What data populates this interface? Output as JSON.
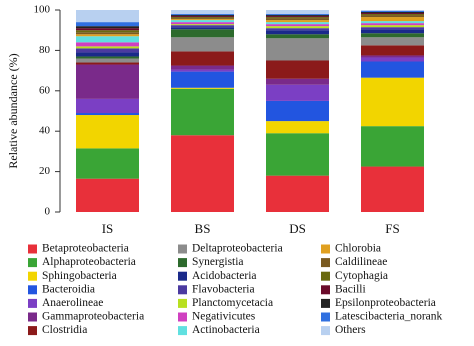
{
  "chart_data": {
    "type": "stacked_bar",
    "y_label": "Relative abundance (%)",
    "categories": [
      "IS",
      "BS",
      "DS",
      "FS"
    ],
    "ylim": [
      0,
      100
    ],
    "yticks": [
      0,
      20,
      40,
      60,
      80,
      100
    ],
    "series": [
      {
        "name": "Betaproteobacteria",
        "color": "#e8303a",
        "values": [
          16.5,
          38,
          18,
          22.5
        ]
      },
      {
        "name": "Alphaproteobacteria",
        "color": "#3aa536",
        "values": [
          15,
          23,
          21,
          20
        ]
      },
      {
        "name": "Sphingobacteria",
        "color": "#f2d500",
        "values": [
          16.5,
          0.5,
          6,
          24
        ]
      },
      {
        "name": "Bacteroidia",
        "color": "#2255e0",
        "values": [
          1,
          8,
          10,
          8
        ]
      },
      {
        "name": "Anaerolineae",
        "color": "#7b3fc4",
        "values": [
          7,
          1,
          8,
          2
        ]
      },
      {
        "name": "Gammaproteobacteria",
        "color": "#7a2a8a",
        "values": [
          17,
          2,
          3,
          1
        ]
      },
      {
        "name": "Clostridia",
        "color": "#8b1a1a",
        "values": [
          1,
          7,
          9,
          5
        ]
      },
      {
        "name": "Deltaproteobacteria",
        "color": "#8c8c8c",
        "values": [
          2,
          7,
          11,
          4
        ]
      },
      {
        "name": "Synergistia",
        "color": "#2d6a2d",
        "values": [
          1,
          4,
          2,
          2
        ]
      },
      {
        "name": "Acidobacteria",
        "color": "#1a2a8a",
        "values": [
          2,
          1,
          2,
          2
        ]
      },
      {
        "name": "Flavobacteria",
        "color": "#4b3aa0",
        "values": [
          2,
          1,
          1,
          1
        ]
      },
      {
        "name": "Planctomycetacia",
        "color": "#b8e020",
        "values": [
          1,
          0.5,
          1,
          1
        ]
      },
      {
        "name": "Negativicutes",
        "color": "#d040c0",
        "values": [
          2,
          1,
          1,
          1
        ]
      },
      {
        "name": "Actinobacteria",
        "color": "#60e0e0",
        "values": [
          3,
          1,
          1,
          1
        ]
      },
      {
        "name": "Chlorobia",
        "color": "#e0a020",
        "values": [
          1,
          0.5,
          1,
          2
        ]
      },
      {
        "name": "Caldilineae",
        "color": "#7a5a20",
        "values": [
          1,
          0.5,
          1,
          1
        ]
      },
      {
        "name": "Cytophagia",
        "color": "#6a6a10",
        "values": [
          1,
          0.5,
          0.5,
          0.5
        ]
      },
      {
        "name": "Bacilli",
        "color": "#6a0a2a",
        "values": [
          1,
          0.5,
          0.5,
          0.5
        ]
      },
      {
        "name": "Epsilonproteobacteria",
        "color": "#222222",
        "values": [
          1,
          0.5,
          0.5,
          0.5
        ]
      },
      {
        "name": "Latescibacteria_norank",
        "color": "#3070e0",
        "values": [
          2,
          0.5,
          0.5,
          0.5
        ]
      },
      {
        "name": "Others",
        "color": "#b8d0f0",
        "values": [
          6,
          2,
          2,
          0.5
        ]
      }
    ]
  }
}
